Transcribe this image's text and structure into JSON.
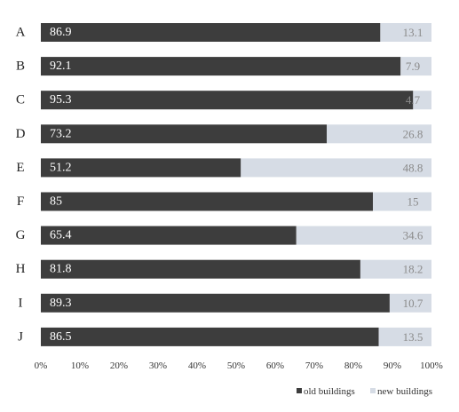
{
  "chart_data": {
    "type": "bar",
    "orientation": "horizontal",
    "stacked": true,
    "percent": true,
    "categories": [
      "A",
      "B",
      "C",
      "D",
      "E",
      "F",
      "G",
      "H",
      "I",
      "J"
    ],
    "series": [
      {
        "name": "old buildings",
        "color": "#3d3d3d",
        "values": [
          86.9,
          92.1,
          95.3,
          73.2,
          51.2,
          85,
          65.4,
          81.8,
          89.3,
          86.5
        ]
      },
      {
        "name": "new buildings",
        "color": "#d6dce5",
        "values": [
          13.1,
          7.9,
          4.7,
          26.8,
          48.8,
          15,
          34.6,
          18.2,
          10.7,
          13.5
        ]
      }
    ],
    "value_labels": {
      "old": [
        "86.9",
        "92.1",
        "95.3",
        "73.2",
        "51.2",
        "85",
        "65.4",
        "81.8",
        "89.3",
        "86.5"
      ],
      "new": [
        "13.1",
        "7.9",
        "4.7",
        "26.8",
        "48.8",
        "15",
        "34.6",
        "18.2",
        "10.7",
        "13.5"
      ]
    },
    "xticks": [
      "0%",
      "10%",
      "20%",
      "30%",
      "40%",
      "50%",
      "60%",
      "70%",
      "80%",
      "90%",
      "100%"
    ],
    "xlim": [
      0,
      100
    ],
    "grid": false,
    "legend_position": "bottom-right"
  }
}
